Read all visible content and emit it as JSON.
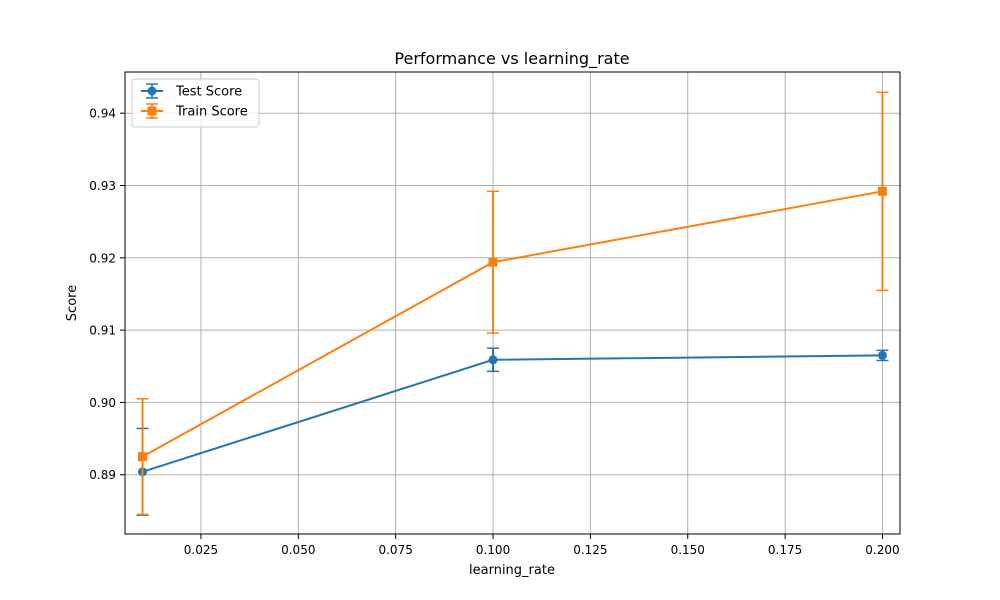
{
  "chart_data": {
    "type": "line",
    "title": "Performance vs learning_rate",
    "xlabel": "learning_rate",
    "ylabel": "Score",
    "xlim": [
      0.0055,
      0.2045
    ],
    "ylim": [
      0.8818,
      0.9457
    ],
    "xticks": [
      "0.025",
      "0.050",
      "0.075",
      "0.100",
      "0.125",
      "0.150",
      "0.175",
      "0.200"
    ],
    "yticks": [
      "0.89",
      "0.90",
      "0.91",
      "0.92",
      "0.93",
      "0.94"
    ],
    "grid": true,
    "legend_position": "upper-left",
    "x": [
      0.01,
      0.1,
      0.2
    ],
    "series": [
      {
        "name": "Test Score",
        "color": "#1f77b4",
        "marker": "circle",
        "values": [
          0.8904,
          0.9059,
          0.9065
        ],
        "errors": [
          0.006,
          0.0016,
          0.0007
        ]
      },
      {
        "name": "Train Score",
        "color": "#ff7f0e",
        "marker": "square",
        "values": [
          0.8925,
          0.9194,
          0.9292
        ],
        "errors": [
          0.008,
          0.0098,
          0.0137
        ]
      }
    ]
  }
}
